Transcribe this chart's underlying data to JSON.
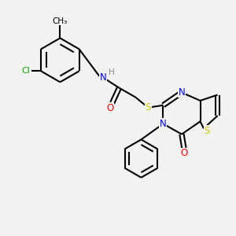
{
  "bg_color": "#f2f2f2",
  "bond_color": "#000000",
  "atom_colors": {
    "N": "#0000ff",
    "O": "#ff0000",
    "S": "#cccc00",
    "Cl": "#00aa00",
    "C": "#000000",
    "H": "#888888"
  }
}
